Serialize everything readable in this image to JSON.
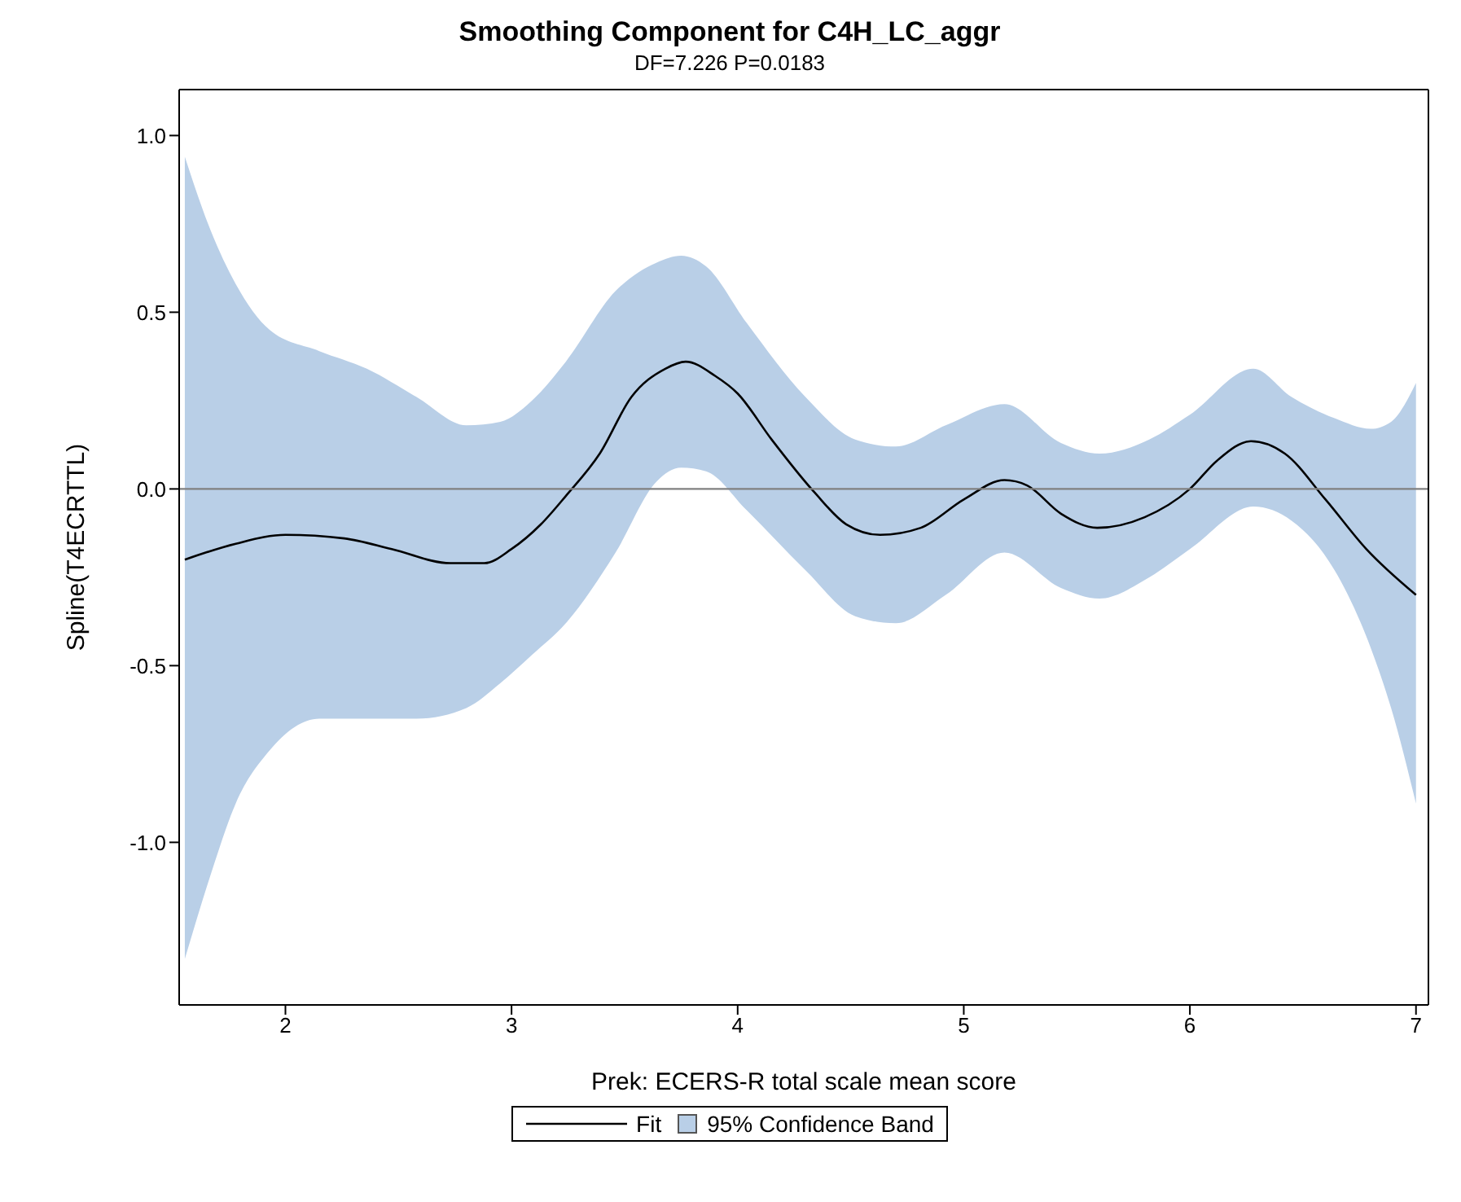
{
  "chart_data": {
    "type": "line",
    "title": "Smoothing Component for C4H_LC_aggr",
    "subtitle": "DF=7.226   P=0.0183",
    "xlabel": "Prek: ECERS-R total scale mean score",
    "ylabel": "Spline(T4ECRTTL)",
    "xlim": [
      1.53,
      7.055
    ],
    "xticks": [
      2,
      3,
      4,
      5,
      6,
      7
    ],
    "ylim": [
      -1.46,
      1.13
    ],
    "yticks": [
      {
        "value": -1,
        "label": "-1.0"
      },
      {
        "value": -0.5,
        "label": "-0.5"
      },
      {
        "value": 0,
        "label": "0.0"
      },
      {
        "value": 0.5,
        "label": "0.5"
      },
      {
        "value": 1,
        "label": "1.0"
      }
    ],
    "grid": false,
    "legend": "bottom",
    "marker": "none",
    "line_style": "solid",
    "ref_lines": [
      {
        "axis": "y",
        "value": 0,
        "color": "#808080"
      }
    ],
    "series": [
      {
        "name": "95% Confidence Band",
        "type": "area",
        "color": "#b9cfe7",
        "x": [
          1.555,
          1.67,
          1.78,
          1.93,
          2.15,
          2.36,
          2.58,
          2.8,
          2.95,
          3.09,
          3.24,
          3.46,
          3.64,
          3.75,
          3.86,
          4.04,
          4.3,
          4.52,
          4.7,
          4.92,
          5.18,
          5.43,
          5.6,
          5.82,
          6.0,
          6.28,
          6.45,
          6.64,
          6.8,
          6.89,
          7.0
        ],
        "values": [
          null,
          null,
          null,
          null,
          null,
          null,
          null,
          null,
          null,
          null,
          null,
          null,
          null,
          null,
          null,
          null,
          null,
          null,
          null,
          null,
          null,
          null,
          null,
          null,
          null,
          null,
          null,
          null,
          null,
          null,
          null
        ],
        "lower": [
          -1.33,
          -1.09,
          -0.89,
          -0.74,
          -0.65,
          -0.65,
          -0.65,
          -0.62,
          -0.55,
          -0.47,
          -0.38,
          -0.18,
          0.02,
          0.06,
          0.05,
          -0.06,
          -0.23,
          -0.36,
          -0.38,
          -0.3,
          -0.18,
          -0.28,
          -0.31,
          -0.25,
          -0.17,
          -0.05,
          -0.09,
          -0.23,
          -0.45,
          -0.62,
          -0.89
        ],
        "upper": [
          0.94,
          0.73,
          0.58,
          0.45,
          0.39,
          0.34,
          0.26,
          0.18,
          0.19,
          0.25,
          0.36,
          0.56,
          0.64,
          0.66,
          0.63,
          0.47,
          0.26,
          0.14,
          0.12,
          0.18,
          0.24,
          0.13,
          0.1,
          0.14,
          0.21,
          0.34,
          0.26,
          0.2,
          0.17,
          0.19,
          0.3
        ]
      },
      {
        "name": "Fit",
        "color": "#000000",
        "x": [
          1.555,
          1.78,
          2.0,
          2.26,
          2.47,
          2.73,
          2.88,
          3.0,
          3.13,
          3.24,
          3.39,
          3.53,
          3.68,
          3.77,
          3.9,
          4.0,
          4.15,
          4.34,
          4.48,
          4.63,
          4.81,
          5.0,
          5.18,
          5.28,
          5.43,
          5.59,
          5.8,
          6.0,
          6.12,
          6.27,
          6.42,
          6.6,
          6.78,
          7.0
        ],
        "values": [
          -0.2,
          -0.155,
          -0.13,
          -0.14,
          -0.17,
          -0.21,
          -0.21,
          -0.17,
          -0.1,
          -0.02,
          0.1,
          0.26,
          0.34,
          0.36,
          0.32,
          0.27,
          0.14,
          -0.01,
          -0.1,
          -0.13,
          -0.11,
          -0.03,
          0.025,
          0.01,
          -0.07,
          -0.11,
          -0.08,
          0.0,
          0.08,
          0.135,
          0.1,
          -0.03,
          -0.17,
          -0.3
        ]
      }
    ]
  }
}
